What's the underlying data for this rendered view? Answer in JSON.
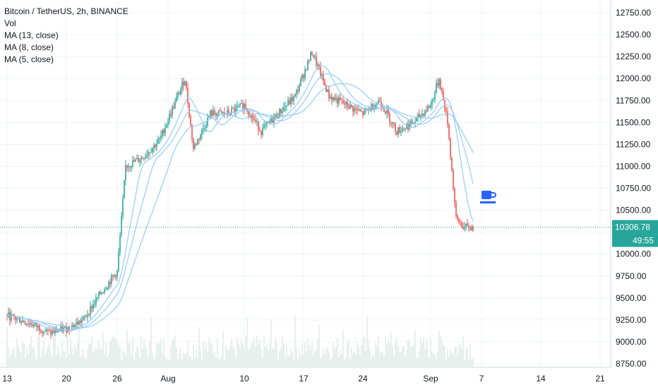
{
  "legend": {
    "title": "Bitcoin / TetherUS, 2h, BINANCE",
    "vol": "Vol",
    "ma13": "MA (13, close)",
    "ma8": "MA (8, close)",
    "ma5": "MA (5, close)"
  },
  "price_label": "10306.78",
  "countdown_label": "49:55",
  "colors": {
    "up": "#26a69a",
    "down": "#ef5350",
    "ma": "#90caf9",
    "grid": "#f0f3fa",
    "axis_text": "#131722",
    "price_line": "#26a69a",
    "icon": "#2962ff"
  },
  "icon": "coffee-cup-icon",
  "chart_data": {
    "type": "candlestick",
    "ylim": [
      8700,
      12900
    ],
    "y_ticks": [
      "8750.00",
      "9000.00",
      "9250.00",
      "9500.00",
      "9750.00",
      "10000.00",
      "10250.00",
      "10500.00",
      "10750.00",
      "11000.00",
      "11250.00",
      "11500.00",
      "11750.00",
      "12000.00",
      "12250.00",
      "12500.00",
      "12750.00"
    ],
    "x_ticks": [
      "13",
      "20",
      "26",
      "Aug",
      "10",
      "17",
      "24",
      "Sep",
      "7",
      "14",
      "21"
    ],
    "grid": true,
    "current_price": 10306.78,
    "price_path": [
      [
        "Jul 13",
        9300
      ],
      [
        "Jul 16",
        9200
      ],
      [
        "Jul 18",
        9100
      ],
      [
        "Jul 20",
        9150
      ],
      [
        "Jul 22",
        9250
      ],
      [
        "Jul 24",
        9550
      ],
      [
        "Jul 26",
        9800
      ],
      [
        "Jul 27",
        11000
      ],
      [
        "Jul 29",
        11100
      ],
      [
        "Jul 31",
        11300
      ],
      [
        "Aug 2",
        12000
      ],
      [
        "Aug 3",
        11200
      ],
      [
        "Aug 5",
        11600
      ],
      [
        "Aug 7",
        11600
      ],
      [
        "Aug 9",
        11700
      ],
      [
        "Aug 11",
        11400
      ],
      [
        "Aug 13",
        11600
      ],
      [
        "Aug 15",
        11800
      ],
      [
        "Aug 17",
        12300
      ],
      [
        "Aug 19",
        11800
      ],
      [
        "Aug 21",
        11700
      ],
      [
        "Aug 23",
        11600
      ],
      [
        "Aug 25",
        11750
      ],
      [
        "Aug 27",
        11400
      ],
      [
        "Aug 29",
        11500
      ],
      [
        "Aug 31",
        11700
      ],
      [
        "Sep 1",
        12000
      ],
      [
        "Sep 2",
        11500
      ],
      [
        "Sep 3",
        10400
      ],
      [
        "Sep 4",
        10300
      ],
      [
        "Sep 5",
        10300
      ]
    ]
  }
}
